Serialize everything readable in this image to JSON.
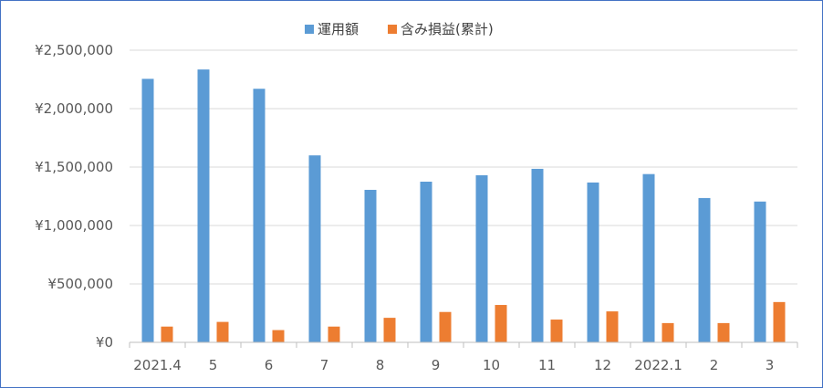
{
  "chart_data": {
    "type": "bar",
    "categories": [
      "2021.4",
      "5",
      "6",
      "7",
      "8",
      "9",
      "10",
      "11",
      "12",
      "2022.1",
      "2",
      "3"
    ],
    "series": [
      {
        "name": "運用額",
        "color": "#5b9bd5",
        "values": [
          2255000,
          2335000,
          2170000,
          1600000,
          1305000,
          1375000,
          1430000,
          1485000,
          1368000,
          1440000,
          1235000,
          1205000
        ]
      },
      {
        "name": "含み損益(累計)",
        "color": "#ed7d31",
        "values": [
          135000,
          175000,
          105000,
          135000,
          210000,
          260000,
          320000,
          195000,
          265000,
          165000,
          165000,
          345000
        ]
      }
    ],
    "y_ticks": [
      "¥0",
      "¥500,000",
      "¥1,000,000",
      "¥1,500,000",
      "¥2,000,000",
      "¥2,500,000"
    ],
    "ylim": [
      0,
      2500000
    ],
    "grid": true,
    "legend_position": "top"
  }
}
